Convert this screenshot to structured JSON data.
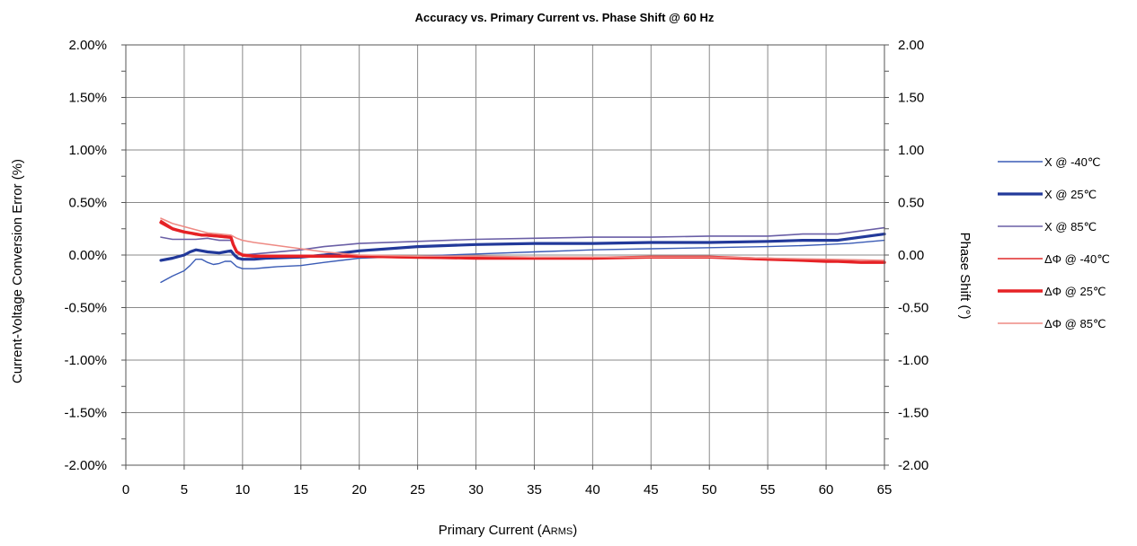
{
  "chart_data": {
    "type": "line",
    "title": "Accuracy vs. Primary Current vs. Phase Shift @ 60 Hz",
    "xlabel": {
      "main": "Primary Current (A",
      "sub": "RMS",
      "end": ")"
    },
    "ylabel_left": "Current-Voltage Conversion Error (%)",
    "ylabel_right": "Phase Shift (°)",
    "xlim": [
      0,
      65
    ],
    "ylim_left": [
      -2.0,
      2.0
    ],
    "ylim_right": [
      -2.0,
      2.0
    ],
    "x_ticks": [
      "0",
      "5",
      "10",
      "15",
      "20",
      "25",
      "30",
      "35",
      "40",
      "45",
      "50",
      "55",
      "60",
      "65"
    ],
    "y_left_ticks": [
      "2.00%",
      "1.50%",
      "1.00%",
      "0.50%",
      "0.00%",
      "-0.50%",
      "-1.00%",
      "-1.50%",
      "-2.00%"
    ],
    "y_right_ticks": [
      "2.00",
      "1.50",
      "1.00",
      "0.50",
      "0.00",
      "-0.50",
      "-1.00",
      "-1.50",
      "-2.00"
    ],
    "grid": true,
    "legend_position": "right",
    "series": [
      {
        "name": "X @ -40℃",
        "color": "#3a5bb5",
        "width": 1.4,
        "axis": "left",
        "points": [
          [
            3,
            -0.26
          ],
          [
            4,
            -0.2
          ],
          [
            5,
            -0.15
          ],
          [
            5.5,
            -0.1
          ],
          [
            6,
            -0.04
          ],
          [
            6.5,
            -0.04
          ],
          [
            7,
            -0.07
          ],
          [
            7.5,
            -0.09
          ],
          [
            8,
            -0.08
          ],
          [
            8.5,
            -0.06
          ],
          [
            9,
            -0.06
          ],
          [
            9.5,
            -0.11
          ],
          [
            10,
            -0.13
          ],
          [
            11,
            -0.13
          ],
          [
            12,
            -0.12
          ],
          [
            13,
            -0.11
          ],
          [
            15,
            -0.1
          ],
          [
            17,
            -0.07
          ],
          [
            20,
            -0.03
          ],
          [
            25,
            -0.01
          ],
          [
            30,
            0.01
          ],
          [
            35,
            0.03
          ],
          [
            40,
            0.05
          ],
          [
            45,
            0.06
          ],
          [
            50,
            0.07
          ],
          [
            55,
            0.08
          ],
          [
            58,
            0.09
          ],
          [
            60,
            0.1
          ],
          [
            62,
            0.11
          ],
          [
            65,
            0.14
          ]
        ]
      },
      {
        "name": "X @ 25℃",
        "color": "#22399a",
        "width": 3.2,
        "axis": "left",
        "points": [
          [
            3,
            -0.05
          ],
          [
            4,
            -0.03
          ],
          [
            5,
            0.0
          ],
          [
            5.5,
            0.03
          ],
          [
            6,
            0.05
          ],
          [
            6.5,
            0.04
          ],
          [
            7,
            0.03
          ],
          [
            8,
            0.02
          ],
          [
            8.5,
            0.03
          ],
          [
            9,
            0.04
          ],
          [
            9.3,
            0.0
          ],
          [
            9.6,
            -0.03
          ],
          [
            10,
            -0.04
          ],
          [
            11,
            -0.04
          ],
          [
            12,
            -0.03
          ],
          [
            15,
            -0.02
          ],
          [
            17,
            0.0
          ],
          [
            20,
            0.04
          ],
          [
            25,
            0.08
          ],
          [
            30,
            0.1
          ],
          [
            35,
            0.11
          ],
          [
            40,
            0.11
          ],
          [
            45,
            0.12
          ],
          [
            50,
            0.12
          ],
          [
            55,
            0.13
          ],
          [
            58,
            0.14
          ],
          [
            61,
            0.14
          ],
          [
            63,
            0.17
          ],
          [
            65,
            0.2
          ]
        ]
      },
      {
        "name": "X @ 85℃",
        "color": "#6a5fa6",
        "width": 1.6,
        "axis": "left",
        "points": [
          [
            3,
            0.17
          ],
          [
            4,
            0.15
          ],
          [
            5,
            0.15
          ],
          [
            6,
            0.15
          ],
          [
            7,
            0.16
          ],
          [
            7.5,
            0.15
          ],
          [
            8,
            0.14
          ],
          [
            9,
            0.14
          ],
          [
            9.5,
            0.04
          ],
          [
            10,
            0.0
          ],
          [
            11,
            0.01
          ],
          [
            12,
            0.02
          ],
          [
            15,
            0.05
          ],
          [
            17,
            0.08
          ],
          [
            20,
            0.11
          ],
          [
            25,
            0.13
          ],
          [
            30,
            0.15
          ],
          [
            35,
            0.16
          ],
          [
            40,
            0.17
          ],
          [
            45,
            0.17
          ],
          [
            50,
            0.18
          ],
          [
            55,
            0.18
          ],
          [
            58,
            0.2
          ],
          [
            61,
            0.2
          ],
          [
            63,
            0.23
          ],
          [
            65,
            0.26
          ]
        ]
      },
      {
        "name": "ΔΦ @ -40℃",
        "color": "#e02a2a",
        "width": 1.4,
        "axis": "right",
        "points": [
          [
            3,
            0.33
          ],
          [
            4,
            0.26
          ],
          [
            5,
            0.22
          ],
          [
            6,
            0.19
          ],
          [
            7,
            0.18
          ],
          [
            8,
            0.17
          ],
          [
            9,
            0.16
          ],
          [
            9.3,
            0.08
          ],
          [
            9.6,
            0.02
          ],
          [
            10,
            -0.01
          ],
          [
            11,
            -0.02
          ],
          [
            12,
            -0.02
          ],
          [
            15,
            -0.02
          ],
          [
            20,
            -0.02
          ],
          [
            25,
            -0.03
          ],
          [
            30,
            -0.03
          ],
          [
            35,
            -0.03
          ],
          [
            40,
            -0.03
          ],
          [
            45,
            -0.02
          ],
          [
            50,
            -0.02
          ],
          [
            55,
            -0.03
          ],
          [
            58,
            -0.04
          ],
          [
            60,
            -0.05
          ],
          [
            62,
            -0.06
          ],
          [
            65,
            -0.07
          ]
        ]
      },
      {
        "name": "ΔΦ @ 25℃",
        "color": "#e62125",
        "width": 3.4,
        "axis": "right",
        "points": [
          [
            3,
            0.31
          ],
          [
            4,
            0.25
          ],
          [
            5,
            0.22
          ],
          [
            6,
            0.2
          ],
          [
            6.5,
            0.19
          ],
          [
            7,
            0.19
          ],
          [
            8,
            0.18
          ],
          [
            9,
            0.17
          ],
          [
            9.2,
            0.1
          ],
          [
            9.5,
            0.03
          ],
          [
            10,
            0.0
          ],
          [
            11,
            -0.01
          ],
          [
            12,
            -0.01
          ],
          [
            15,
            -0.01
          ],
          [
            20,
            -0.01
          ],
          [
            25,
            -0.02
          ],
          [
            30,
            -0.03
          ],
          [
            35,
            -0.03
          ],
          [
            40,
            -0.03
          ],
          [
            45,
            -0.02
          ],
          [
            50,
            -0.02
          ],
          [
            55,
            -0.04
          ],
          [
            58,
            -0.05
          ],
          [
            60,
            -0.06
          ],
          [
            61,
            -0.06
          ],
          [
            63,
            -0.07
          ],
          [
            65,
            -0.07
          ]
        ]
      },
      {
        "name": "ΔΦ @ 85℃",
        "color": "#ee8a84",
        "width": 1.6,
        "axis": "right",
        "points": [
          [
            3,
            0.35
          ],
          [
            4,
            0.3
          ],
          [
            5,
            0.27
          ],
          [
            6,
            0.24
          ],
          [
            7,
            0.21
          ],
          [
            8,
            0.2
          ],
          [
            9,
            0.19
          ],
          [
            9.5,
            0.16
          ],
          [
            10,
            0.14
          ],
          [
            11,
            0.12
          ],
          [
            13,
            0.09
          ],
          [
            15,
            0.06
          ],
          [
            17,
            0.03
          ],
          [
            20,
            0.0
          ],
          [
            25,
            -0.01
          ],
          [
            30,
            -0.01
          ],
          [
            35,
            -0.02
          ],
          [
            40,
            -0.02
          ],
          [
            45,
            -0.02
          ],
          [
            50,
            -0.02
          ],
          [
            55,
            -0.03
          ],
          [
            60,
            -0.04
          ],
          [
            65,
            -0.05
          ]
        ]
      }
    ]
  }
}
